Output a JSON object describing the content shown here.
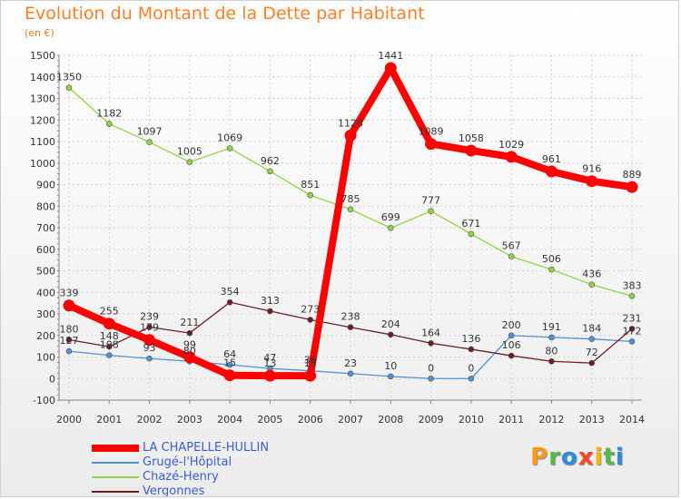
{
  "header": {
    "title": "Evolution du Montant de la Dette par Habitant",
    "subtitle": "(en €)"
  },
  "logo": {
    "text": "Proxiti",
    "letters": [
      "P",
      "r",
      "o",
      "x",
      "i",
      "t",
      "i"
    ]
  },
  "chart_data": {
    "type": "line",
    "x": [
      "2000",
      "2001",
      "2002",
      "2003",
      "2004",
      "2005",
      "2006",
      "2007",
      "2008",
      "2009",
      "2010",
      "2011",
      "2012",
      "2013",
      "2014"
    ],
    "ylim": [
      -100,
      1500
    ],
    "yticks": [
      "-100",
      "0",
      "100",
      "200",
      "300",
      "400",
      "500",
      "600",
      "700",
      "800",
      "900",
      "1000",
      "1100",
      "1200",
      "1300",
      "1400",
      "1500"
    ],
    "grid": true,
    "legend_position": "bottom-left",
    "series": [
      {
        "name": "LA CHAPELLE-HULLIN",
        "color": "#ff0000",
        "values": [
          339,
          255,
          179,
          99,
          15,
          13,
          13,
          1128,
          1441,
          1089,
          1058,
          1029,
          961,
          916,
          889
        ],
        "labels": [
          "339",
          "255",
          "179",
          "99",
          "15",
          "13",
          "13",
          "1128",
          "1441",
          "1089",
          "1058",
          "1029",
          "961",
          "916",
          "889"
        ]
      },
      {
        "name": "Grugé-l'Hôpital",
        "color": "#4e92d1",
        "values": [
          127,
          108,
          93,
          80,
          64,
          47,
          36,
          23,
          10,
          0,
          0,
          200,
          191,
          184,
          172
        ],
        "labels": [
          "127",
          "108",
          "93",
          "80",
          "64",
          "47",
          "36",
          "23",
          "10",
          "0",
          "0",
          "200",
          "191",
          "184",
          "172"
        ]
      },
      {
        "name": "Chazé-Henry",
        "color": "#8ed44a",
        "values": [
          1350,
          1182,
          1097,
          1005,
          1069,
          962,
          851,
          785,
          699,
          777,
          671,
          567,
          506,
          436,
          383
        ],
        "labels": [
          "1350",
          "1182",
          "1097",
          "1005",
          "1069",
          "962",
          "851",
          "785",
          "699",
          "777",
          "671",
          "567",
          "506",
          "436",
          "383"
        ]
      },
      {
        "name": "Vergonnes",
        "color": "#6b1f24",
        "values": [
          180,
          148,
          239,
          211,
          354,
          313,
          273,
          238,
          204,
          164,
          136,
          106,
          80,
          72,
          231
        ],
        "labels": [
          "180",
          "148",
          "239",
          "211",
          "354",
          "313",
          "273",
          "238",
          "204",
          "164",
          "136",
          "106",
          "80",
          "72",
          "231"
        ]
      }
    ]
  }
}
